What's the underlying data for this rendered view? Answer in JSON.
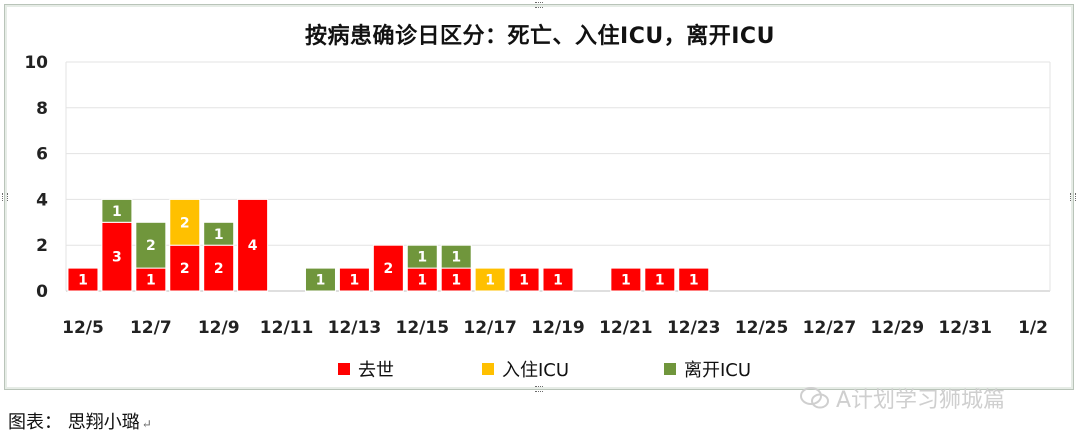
{
  "chart_data": {
    "type": "bar",
    "stacked": true,
    "title": "按病患确诊日区分：死亡、入住ICU，离开ICU",
    "ylim": [
      0,
      10
    ],
    "y_ticks": [
      "0",
      "2",
      "4",
      "6",
      "8",
      "10"
    ],
    "x_tick_labels": [
      "12/5",
      "12/7",
      "12/9",
      "12/11",
      "12/13",
      "12/15",
      "12/17",
      "12/19",
      "12/21",
      "12/23",
      "12/25",
      "12/27",
      "12/29",
      "12/31",
      "1/2"
    ],
    "categories": [
      "12/5",
      "12/6",
      "12/7",
      "12/8",
      "12/9",
      "12/10",
      "12/11",
      "12/12",
      "12/13",
      "12/14",
      "12/15",
      "12/16",
      "12/17",
      "12/18",
      "12/19",
      "12/20",
      "12/21",
      "12/22",
      "12/23",
      "12/24",
      "12/25",
      "12/26",
      "12/27",
      "12/28",
      "12/29",
      "12/30",
      "12/31",
      "1/1",
      "1/2"
    ],
    "series": [
      {
        "name": "去世",
        "color": "#ff0000",
        "values": [
          1,
          3,
          1,
          2,
          2,
          4,
          0,
          0,
          1,
          2,
          1,
          1,
          0,
          1,
          1,
          0,
          1,
          1,
          1,
          0,
          0,
          0,
          0,
          0,
          0,
          0,
          0,
          0,
          0
        ]
      },
      {
        "name": "入住ICU",
        "color": "#ffc000",
        "values": [
          0,
          0,
          0,
          2,
          0,
          0,
          0,
          0,
          0,
          0,
          0,
          0,
          1,
          0,
          0,
          0,
          0,
          0,
          0,
          0,
          0,
          0,
          0,
          0,
          0,
          0,
          0,
          0,
          0
        ]
      },
      {
        "name": "离开ICU",
        "color": "#70963c",
        "values": [
          0,
          1,
          2,
          0,
          1,
          0,
          0,
          1,
          0,
          0,
          1,
          1,
          0,
          0,
          0,
          0,
          0,
          0,
          0,
          0,
          0,
          0,
          0,
          0,
          0,
          0,
          0,
          0,
          0
        ]
      }
    ],
    "grid": true,
    "legend_position": "bottom"
  },
  "legend": {
    "items": [
      {
        "label": "去世",
        "color": "#ff0000"
      },
      {
        "label": "入住ICU",
        "color": "#ffc000"
      },
      {
        "label": "离开ICU",
        "color": "#70963c"
      }
    ]
  },
  "watermark": {
    "text": "A计划学习狮城篇"
  },
  "footer": {
    "text": "图表： 思翔小璐"
  }
}
